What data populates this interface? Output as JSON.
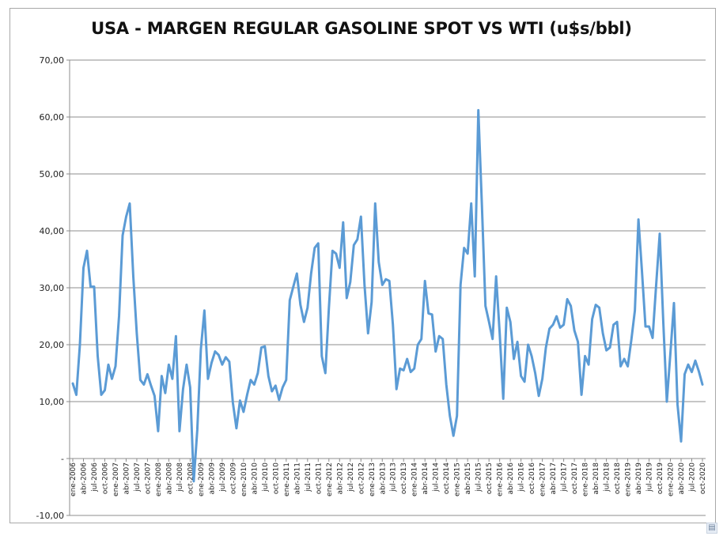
{
  "chart_data": {
    "type": "line",
    "title": "USA - MARGEN REGULAR GASOLINE SPOT VS WTI (u$s/bbl)",
    "xlabel": "",
    "ylabel": "",
    "ylim": [
      -10,
      70
    ],
    "y_ticks": [
      -10,
      0,
      10,
      20,
      30,
      40,
      50,
      60,
      70
    ],
    "y_tick_labels": [
      "-10,00",
      "-",
      "10,00",
      "20,00",
      "30,00",
      "40,00",
      "50,00",
      "60,00",
      "70,00"
    ],
    "grid": "horizontal",
    "legend": "none",
    "line_color": "#5b9bd5",
    "x_tick_labels": [
      "ene-2006",
      "abr-2006",
      "jul-2006",
      "oct-2006",
      "ene-2007",
      "abr-2007",
      "jul-2007",
      "oct-2007",
      "ene-2008",
      "abr-2008",
      "jul-2008",
      "oct-2008",
      "ene-2009",
      "abr-2009",
      "jul-2009",
      "oct-2009",
      "ene-2010",
      "abr-2010",
      "jul-2010",
      "oct-2010",
      "ene-2011",
      "abr-2011",
      "jul-2011",
      "oct-2011",
      "ene-2012",
      "abr-2012",
      "jul-2012",
      "oct-2012",
      "ene-2013",
      "abr-2013",
      "jul-2013",
      "oct-2013",
      "ene-2014",
      "abr-2014",
      "jul-2014",
      "oct-2014",
      "ene-2015",
      "abr-2015",
      "jul-2015",
      "oct-2015",
      "ene-2016",
      "abr-2016",
      "jul-2016",
      "oct-2016",
      "ene-2017",
      "abr-2017",
      "jul-2017",
      "oct-2017",
      "ene-2018",
      "abr-2018",
      "jul-2018",
      "oct-2018",
      "ene-2019",
      "abr-2019",
      "jul-2019",
      "oct-2019",
      "ene-2020",
      "abr-2020",
      "jul-2020",
      "oct-2020"
    ],
    "x": [
      "ene-2006",
      "feb-2006",
      "mar-2006",
      "abr-2006",
      "may-2006",
      "jun-2006",
      "jul-2006",
      "ago-2006",
      "sep-2006",
      "oct-2006",
      "nov-2006",
      "dic-2006",
      "ene-2007",
      "feb-2007",
      "mar-2007",
      "abr-2007",
      "may-2007",
      "jun-2007",
      "jul-2007",
      "ago-2007",
      "sep-2007",
      "oct-2007",
      "nov-2007",
      "dic-2007",
      "ene-2008",
      "feb-2008",
      "mar-2008",
      "abr-2008",
      "may-2008",
      "jun-2008",
      "jul-2008",
      "ago-2008",
      "sep-2008",
      "oct-2008",
      "nov-2008",
      "dic-2008",
      "ene-2009",
      "feb-2009",
      "mar-2009",
      "abr-2009",
      "may-2009",
      "jun-2009",
      "jul-2009",
      "ago-2009",
      "sep-2009",
      "oct-2009",
      "nov-2009",
      "dic-2009",
      "ene-2010",
      "feb-2010",
      "mar-2010",
      "abr-2010",
      "may-2010",
      "jun-2010",
      "jul-2010",
      "ago-2010",
      "sep-2010",
      "oct-2010",
      "nov-2010",
      "dic-2010",
      "ene-2011",
      "feb-2011",
      "mar-2011",
      "abr-2011",
      "may-2011",
      "jun-2011",
      "jul-2011",
      "ago-2011",
      "sep-2011",
      "oct-2011",
      "nov-2011",
      "dic-2011",
      "ene-2012",
      "feb-2012",
      "mar-2012",
      "abr-2012",
      "may-2012",
      "jun-2012",
      "jul-2012",
      "ago-2012",
      "sep-2012",
      "oct-2012",
      "nov-2012",
      "dic-2012",
      "ene-2013",
      "feb-2013",
      "mar-2013",
      "abr-2013",
      "may-2013",
      "jun-2013",
      "jul-2013",
      "ago-2013",
      "sep-2013",
      "oct-2013",
      "nov-2013",
      "dic-2013",
      "ene-2014",
      "feb-2014",
      "mar-2014",
      "abr-2014",
      "may-2014",
      "jun-2014",
      "jul-2014",
      "ago-2014",
      "sep-2014",
      "oct-2014",
      "nov-2014",
      "dic-2014",
      "ene-2015",
      "feb-2015",
      "mar-2015",
      "abr-2015",
      "may-2015",
      "jun-2015",
      "jul-2015",
      "ago-2015",
      "sep-2015",
      "oct-2015",
      "nov-2015",
      "dic-2015",
      "ene-2016",
      "feb-2016",
      "mar-2016",
      "abr-2016",
      "may-2016",
      "jun-2016",
      "jul-2016",
      "ago-2016",
      "sep-2016",
      "oct-2016",
      "nov-2016",
      "dic-2016",
      "ene-2017",
      "feb-2017",
      "mar-2017",
      "abr-2017",
      "may-2017",
      "jun-2017",
      "jul-2017",
      "ago-2017",
      "sep-2017",
      "oct-2017",
      "nov-2017",
      "dic-2017",
      "ene-2018",
      "feb-2018",
      "mar-2018",
      "abr-2018",
      "may-2018",
      "jun-2018",
      "jul-2018",
      "ago-2018",
      "sep-2018",
      "oct-2018",
      "nov-2018",
      "dic-2018",
      "ene-2019",
      "feb-2019",
      "mar-2019",
      "abr-2019",
      "may-2019",
      "jun-2019",
      "jul-2019",
      "ago-2019",
      "sep-2019",
      "oct-2019",
      "nov-2019",
      "dic-2019",
      "ene-2020",
      "feb-2020",
      "mar-2020",
      "abr-2020",
      "may-2020",
      "jun-2020",
      "jul-2020",
      "ago-2020",
      "sep-2020",
      "oct-2020"
    ],
    "series": [
      {
        "values": [
          13.2,
          11.2,
          20.0,
          33.5,
          36.5,
          30.2,
          30.2,
          18.0,
          11.2,
          12.0,
          16.5,
          14.0,
          16.2,
          25.0,
          39.2,
          42.5,
          44.8,
          32.0,
          22.0,
          13.8,
          13.0,
          14.8,
          12.8,
          11.0,
          4.8,
          14.5,
          11.5,
          16.5,
          14.0,
          21.5,
          4.8,
          12.2,
          16.5,
          12.5,
          -4.0,
          5.0,
          19.2,
          26.0,
          14.0,
          16.8,
          18.8,
          18.2,
          16.5,
          17.8,
          17.0,
          9.8,
          5.3,
          10.2,
          8.2,
          11.2,
          13.8,
          13.0,
          15.0,
          19.5,
          19.7,
          14.5,
          11.8,
          12.8,
          10.3,
          12.5,
          13.8,
          27.8,
          30.2,
          32.5,
          27.0,
          24.0,
          26.5,
          32.5,
          37.0,
          37.8,
          18.0,
          15.0,
          26.5,
          36.5,
          36.0,
          33.5,
          41.5,
          28.2,
          31.0,
          37.5,
          38.5,
          42.5,
          30.5,
          22.0,
          27.5,
          44.8,
          34.5,
          30.5,
          31.5,
          31.2,
          23.5,
          12.2,
          15.8,
          15.5,
          17.5,
          15.2,
          15.8,
          20.0,
          21.0,
          31.2,
          25.5,
          25.3,
          18.8,
          21.5,
          21.0,
          13.0,
          7.5,
          4.0,
          7.5,
          30.5,
          37.0,
          36.0,
          44.8,
          32.0,
          61.2,
          44.5,
          26.8,
          24.0,
          21.0,
          32.0,
          22.0,
          10.5,
          26.5,
          24.0,
          17.5,
          20.5,
          14.5,
          13.5,
          20.0,
          18.0,
          15.0,
          11.0,
          14.0,
          19.5,
          22.8,
          23.5,
          25.0,
          23.0,
          23.5,
          28.0,
          26.8,
          22.5,
          20.5,
          11.2,
          18.0,
          16.5,
          24.5,
          27.0,
          26.5,
          22.0,
          19.0,
          19.5,
          23.5,
          24.0,
          16.2,
          17.5,
          16.2,
          20.8,
          26.0,
          42.0,
          33.0,
          23.2,
          23.2,
          21.2,
          30.5,
          39.5,
          24.0,
          10.0,
          18.5,
          27.3,
          9.5,
          3.0,
          14.8,
          16.5,
          15.2,
          17.2,
          15.3,
          13.0
        ]
      }
    ]
  }
}
